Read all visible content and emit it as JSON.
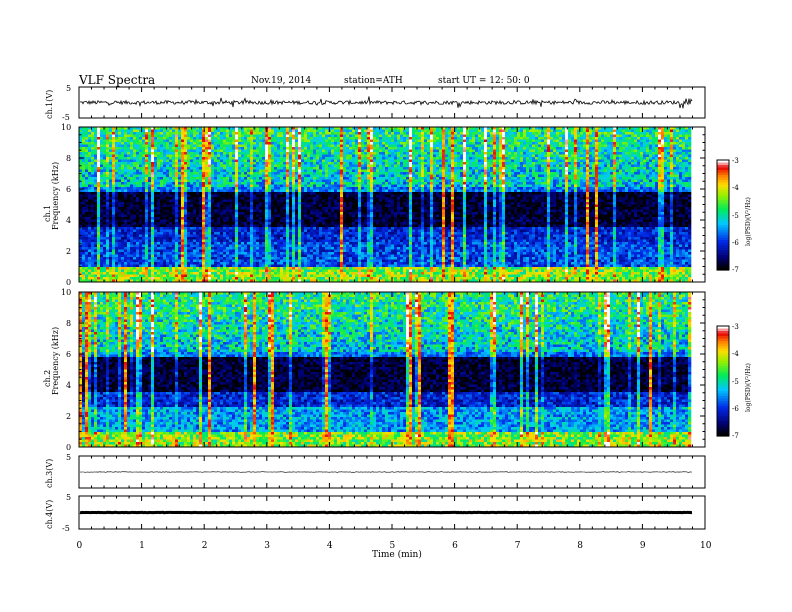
{
  "header": {
    "title": "VLF  Spectra",
    "date": "Nov.19, 2014",
    "station": "station=ATH",
    "start": "start  UT  =   12: 50: 0"
  },
  "chart_data": [
    {
      "type": "line",
      "panel": "ch1-waveform",
      "ylabel": "ch.1(V)",
      "yticks": [
        "5",
        "-5"
      ],
      "ylim": [
        -5,
        5
      ],
      "xlim": [
        0,
        10
      ],
      "data_end": 9.8,
      "baseline": 0.0,
      "noise_amplitude": 0.6,
      "trace_color": "#000000"
    },
    {
      "type": "heatmap",
      "panel": "ch1-spectrogram",
      "ylabel": "ch.1",
      "ylabel2": "Frequency  (kHz)",
      "yticks": [
        "0",
        "2",
        "4",
        "6",
        "8",
        "10"
      ],
      "ylim": [
        0,
        10
      ],
      "xlim": [
        0,
        10
      ],
      "data_end": 9.8,
      "colorbar": {
        "label": "log(PSD)(V²/Hz)",
        "ticks": [
          "-3",
          "-4",
          "-5",
          "-6",
          "-7"
        ],
        "range": [
          -7,
          -3
        ]
      }
    },
    {
      "type": "heatmap",
      "panel": "ch2-spectrogram",
      "ylabel": "ch.2",
      "ylabel2": "Frequency  (kHz)",
      "yticks": [
        "0",
        "2",
        "4",
        "6",
        "8",
        "10"
      ],
      "ylim": [
        0,
        10
      ],
      "xlim": [
        0,
        10
      ],
      "data_end": 9.8,
      "colorbar": {
        "label": "log(PSD)(V²/Hz)",
        "ticks": [
          "-3",
          "-4",
          "-5",
          "-6",
          "-7"
        ],
        "range": [
          -7,
          -3
        ]
      }
    },
    {
      "type": "line",
      "panel": "ch3-waveform",
      "ylabel": "ch.3(V)",
      "yticks": [
        "5"
      ],
      "ylim": [
        -5,
        5
      ],
      "xlim": [
        0,
        10
      ],
      "data_end": 9.8,
      "baseline": 0.0,
      "noise_amplitude": 0.1,
      "trace_color": "#000000"
    },
    {
      "type": "line",
      "panel": "ch4-waveform",
      "ylabel": "ch.4(V)",
      "yticks": [
        "5",
        "-5"
      ],
      "ylim": [
        -5,
        5
      ],
      "xlim": [
        0,
        10
      ],
      "data_end": 9.8,
      "baseline": 0.0,
      "noise_amplitude": 0.05,
      "trace_color": "#000000"
    }
  ],
  "xaxis": {
    "label": "Time  (min)",
    "ticks": [
      "0",
      "1",
      "2",
      "3",
      "4",
      "5",
      "6",
      "7",
      "8",
      "9",
      "10"
    ]
  }
}
